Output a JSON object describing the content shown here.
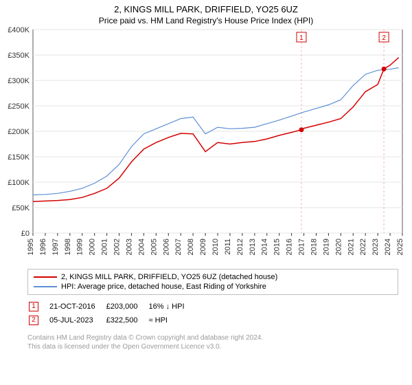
{
  "title_line1": "2, KINGS MILL PARK, DRIFFIELD, YO25 6UZ",
  "title_line2": "Price paid vs. HM Land Registry's House Price Index (HPI)",
  "chart": {
    "type": "line",
    "background_color": "#ffffff",
    "grid_color": "#e6e6e6",
    "axis_color": "#333333",
    "x_years": [
      1995,
      1996,
      1997,
      1998,
      1999,
      2000,
      2001,
      2002,
      2003,
      2004,
      2005,
      2006,
      2007,
      2008,
      2009,
      2010,
      2011,
      2012,
      2013,
      2014,
      2015,
      2016,
      2017,
      2018,
      2019,
      2020,
      2021,
      2022,
      2023,
      2024,
      2025
    ],
    "xlim": [
      1995,
      2025
    ],
    "ylim": [
      0,
      400000
    ],
    "ytick_step": 50000,
    "ytick_labels": [
      "£0",
      "£50K",
      "£100K",
      "£150K",
      "£200K",
      "£250K",
      "£300K",
      "£350K",
      "£400K"
    ],
    "label_fontsize": 11,
    "series": [
      {
        "name": "price_paid",
        "label": "2, KINGS MILL PARK, DRIFFIELD, YO25 6UZ (detached house)",
        "color": "#d40000",
        "line_width": 1.5,
        "x": [
          1995,
          1996,
          1997,
          1998,
          1999,
          2000,
          2001,
          2002,
          2003,
          2004,
          2005,
          2006,
          2007,
          2008,
          2009,
          2010,
          2011,
          2012,
          2013,
          2014,
          2015,
          2016,
          2016.8,
          2017,
          2018,
          2019,
          2020,
          2021,
          2022,
          2023,
          2023.5,
          2024,
          2024.7
        ],
        "y": [
          62000,
          63000,
          64000,
          66000,
          70000,
          78000,
          88000,
          108000,
          140000,
          165000,
          178000,
          188000,
          196000,
          195000,
          160000,
          178000,
          175000,
          178000,
          180000,
          185000,
          192000,
          198000,
          203000,
          206000,
          212000,
          218000,
          225000,
          248000,
          278000,
          292000,
          322500,
          330000,
          345000
        ]
      },
      {
        "name": "hpi",
        "label": "HPI: Average price, detached house, East Riding of Yorkshire",
        "color": "#5b8fd6",
        "line_width": 1.2,
        "x": [
          1995,
          1996,
          1997,
          1998,
          1999,
          2000,
          2001,
          2002,
          2003,
          2004,
          2005,
          2006,
          2007,
          2008,
          2009,
          2010,
          2011,
          2012,
          2013,
          2014,
          2015,
          2016,
          2017,
          2018,
          2019,
          2020,
          2021,
          2022,
          2023,
          2024,
          2024.7
        ],
        "y": [
          75000,
          76000,
          78000,
          82000,
          88000,
          98000,
          112000,
          135000,
          170000,
          195000,
          205000,
          215000,
          225000,
          228000,
          195000,
          208000,
          205000,
          206000,
          208000,
          215000,
          222000,
          230000,
          238000,
          245000,
          252000,
          262000,
          290000,
          312000,
          320000,
          322000,
          325000
        ]
      }
    ],
    "markers": [
      {
        "n": "1",
        "x": 2016.8,
        "y": 203000,
        "color": "#d40000"
      },
      {
        "n": "2",
        "x": 2023.5,
        "y": 322500,
        "color": "#d40000"
      }
    ],
    "marker_line_color": "#f3b4b4"
  },
  "legend": [
    {
      "color": "#d40000",
      "label": "2, KINGS MILL PARK, DRIFFIELD, YO25 6UZ (detached house)"
    },
    {
      "color": "#5b8fd6",
      "label": "HPI: Average price, detached house, East Riding of Yorkshire"
    }
  ],
  "marker_rows": [
    {
      "n": "1",
      "color": "#d40000",
      "date": "21-OCT-2016",
      "price": "£203,000",
      "delta": "16% ↓ HPI"
    },
    {
      "n": "2",
      "color": "#d40000",
      "date": "05-JUL-2023",
      "price": "£322,500",
      "delta": "≈ HPI"
    }
  ],
  "attribution_line1": "Contains HM Land Registry data © Crown copyright and database right 2024.",
  "attribution_line2": "This data is licensed under the Open Government Licence v3.0."
}
